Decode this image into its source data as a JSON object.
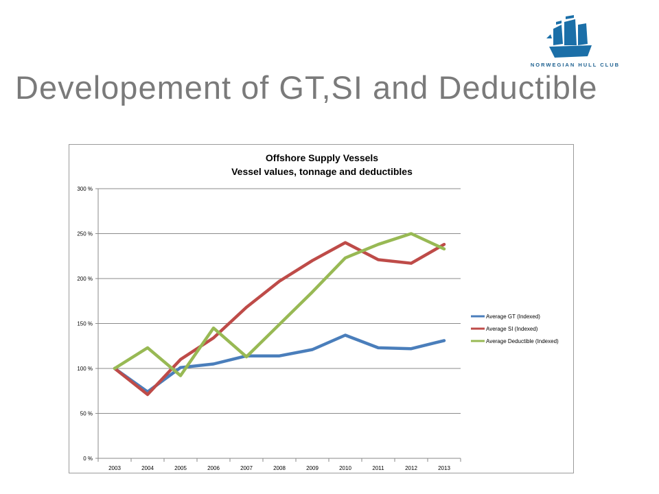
{
  "slide": {
    "title": "Developement of GT,SI and Deductible",
    "logo_text": "NORWEGIAN HULL CLUB",
    "logo_icon": "ship-icon"
  },
  "chart_data": {
    "type": "line",
    "title": "Offshore Supply Vessels",
    "subtitle": "Vessel values, tonnage and deductibles",
    "xlabel": "",
    "ylabel": "",
    "x": [
      "2003",
      "2004",
      "2005",
      "2006",
      "2007",
      "2008",
      "2009",
      "2010",
      "2011",
      "2012",
      "2013"
    ],
    "ylim": [
      0,
      300
    ],
    "yticks": [
      0,
      50,
      100,
      150,
      200,
      250,
      300
    ],
    "ytick_labels": [
      "0 %",
      "50 %",
      "100 %",
      "150 %",
      "200 %",
      "250 %",
      "300 %"
    ],
    "grid": true,
    "legend_position": "right",
    "series": [
      {
        "name": "Average GT (Indexed)",
        "color": "#4a7ebb",
        "values": [
          100,
          74,
          101,
          105,
          114,
          114,
          121,
          137,
          123,
          122,
          131
        ]
      },
      {
        "name": "Average SI (Indexed)",
        "color": "#be4b48",
        "values": [
          100,
          71,
          110,
          134,
          168,
          197,
          220,
          240,
          221,
          217,
          238
        ]
      },
      {
        "name": "Average Deductible (Indexed)",
        "color": "#98b954",
        "values": [
          100,
          123,
          92,
          145,
          113,
          149,
          185,
          223,
          238,
          250,
          233
        ]
      }
    ]
  }
}
